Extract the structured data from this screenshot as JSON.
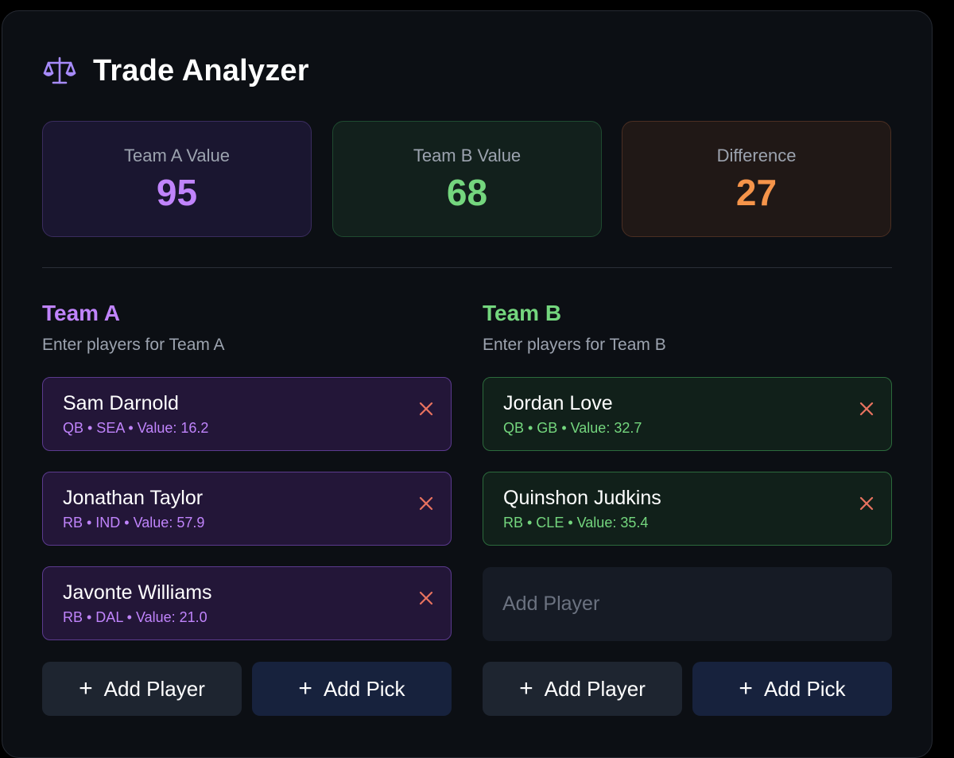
{
  "header": {
    "title": "Trade Analyzer",
    "icon": "scale-icon"
  },
  "stats": {
    "team_a": {
      "label": "Team A Value",
      "value": "95"
    },
    "team_b": {
      "label": "Team B Value",
      "value": "68"
    },
    "difference": {
      "label": "Difference",
      "value": "27"
    }
  },
  "team_a": {
    "title": "Team A",
    "subtitle": "Enter players for Team A",
    "players": [
      {
        "name": "Sam Darnold",
        "meta": "QB • SEA • Value: 16.2"
      },
      {
        "name": "Jonathan Taylor",
        "meta": "RB • IND • Value: 57.9"
      },
      {
        "name": "Javonte Williams",
        "meta": "RB • DAL • Value: 21.0"
      }
    ],
    "add_player_label": "Add Player",
    "add_pick_label": "Add Pick"
  },
  "team_b": {
    "title": "Team B",
    "subtitle": "Enter players for Team B",
    "players": [
      {
        "name": "Jordan Love",
        "meta": "QB • GB • Value: 32.7"
      },
      {
        "name": "Quinshon Judkins",
        "meta": "RB • CLE • Value: 35.4"
      }
    ],
    "add_player_placeholder": "Add Player",
    "add_player_label": "Add Player",
    "add_pick_label": "Add Pick"
  },
  "colors": {
    "team_a_accent": "#c084fc",
    "team_b_accent": "#74d67e",
    "difference_accent": "#f5944a",
    "remove_icon": "#e8725f"
  }
}
